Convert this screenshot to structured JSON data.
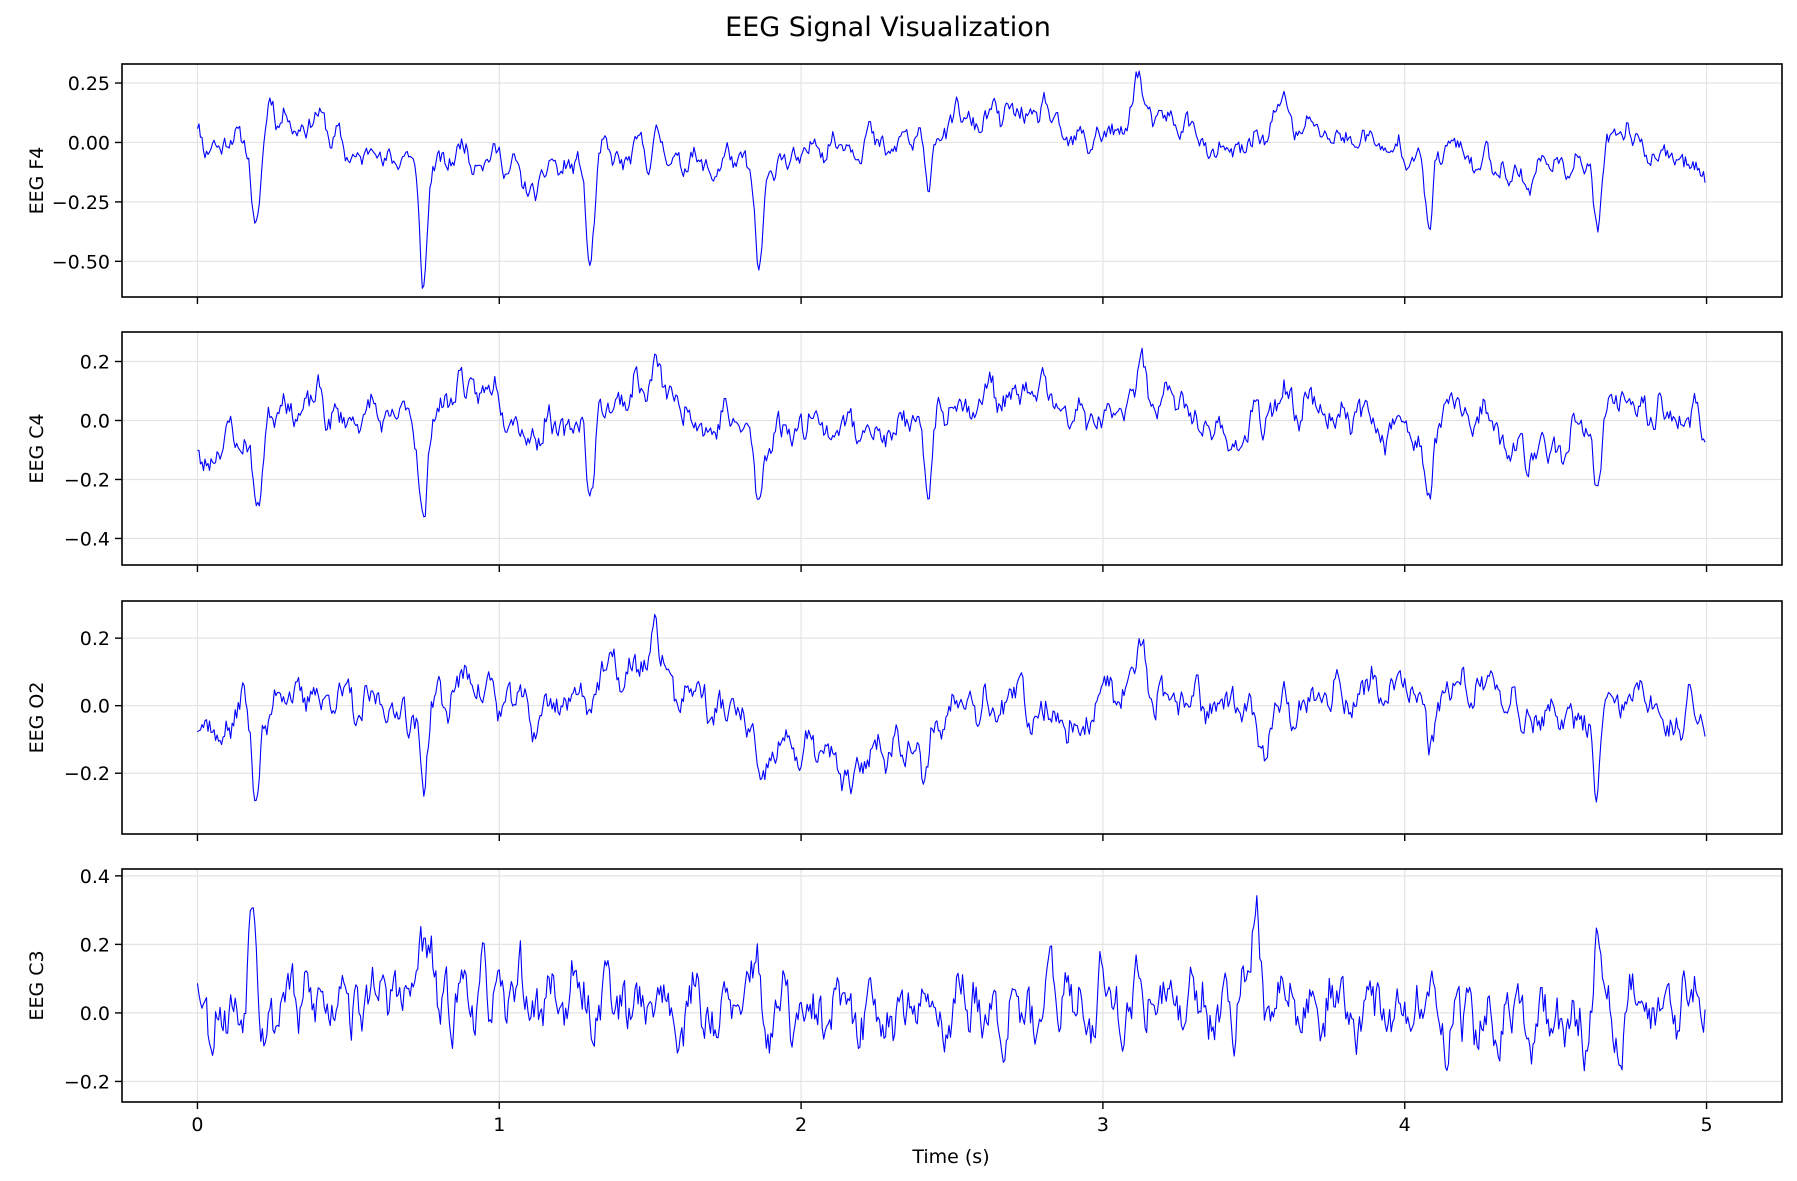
{
  "title": "EEG Signal Visualization",
  "colors": {
    "trace": "#0000ff",
    "grid": "#e3e3e3",
    "frame": "#000000"
  },
  "chart_data": {
    "type": "line",
    "title": "EEG Signal Visualization",
    "xlabel": "Time (s)",
    "xlim": [
      -0.25,
      5.25
    ],
    "xticks": [
      0,
      1,
      2,
      3,
      4,
      5
    ],
    "xtick_labels": [
      "0",
      "1",
      "2",
      "3",
      "4",
      "5"
    ],
    "grid": true,
    "sampling_rate_hz": 200,
    "duration_s": 5,
    "panels": [
      {
        "ylabel": "EEG F4",
        "ylim": [
          -0.65,
          0.33
        ],
        "yticks": [
          0.25,
          0.0,
          -0.25,
          -0.5
        ],
        "ytick_labels": [
          "0.25",
          "0.00",
          "−0.25",
          "−0.50"
        ],
        "baseline": [
          [
            0,
            -0.02
          ],
          [
            0.05,
            0.02
          ],
          [
            0.1,
            -0.02
          ],
          [
            0.15,
            0.05
          ],
          [
            0.2,
            -0.12
          ],
          [
            0.25,
            0.05
          ],
          [
            0.3,
            0.08
          ],
          [
            0.4,
            0.1
          ],
          [
            0.5,
            -0.05
          ],
          [
            0.6,
            -0.05
          ],
          [
            0.7,
            -0.07
          ],
          [
            0.8,
            -0.07
          ],
          [
            0.9,
            -0.05
          ],
          [
            1.0,
            -0.06
          ],
          [
            1.1,
            -0.2
          ],
          [
            1.2,
            -0.1
          ],
          [
            1.3,
            -0.07
          ],
          [
            1.4,
            -0.06
          ],
          [
            1.5,
            -0.05
          ],
          [
            1.6,
            -0.08
          ],
          [
            1.7,
            -0.1
          ],
          [
            1.8,
            -0.08
          ],
          [
            1.9,
            -0.12
          ],
          [
            2.0,
            -0.05
          ],
          [
            2.1,
            0.0
          ],
          [
            2.2,
            0.0
          ],
          [
            2.3,
            -0.02
          ],
          [
            2.5,
            0.08
          ],
          [
            2.6,
            0.1
          ],
          [
            2.7,
            0.12
          ],
          [
            2.8,
            0.12
          ],
          [
            2.9,
            0.0
          ],
          [
            3.0,
            0.02
          ],
          [
            3.1,
            0.1
          ],
          [
            3.2,
            0.1
          ],
          [
            3.3,
            0.05
          ],
          [
            3.4,
            -0.08
          ],
          [
            3.5,
            0.02
          ],
          [
            3.6,
            0.08
          ],
          [
            3.7,
            0.05
          ],
          [
            3.8,
            0.02
          ],
          [
            3.9,
            0.0
          ],
          [
            4.0,
            -0.05
          ],
          [
            4.1,
            -0.02
          ],
          [
            4.2,
            -0.05
          ],
          [
            4.3,
            -0.1
          ],
          [
            4.4,
            -0.15
          ],
          [
            4.5,
            -0.08
          ],
          [
            4.6,
            -0.1
          ],
          [
            4.7,
            0.05
          ],
          [
            4.8,
            -0.02
          ],
          [
            4.9,
            -0.08
          ],
          [
            5.0,
            -0.1
          ]
        ],
        "spikes": [
          [
            0.19,
            -0.28
          ],
          [
            0.24,
            0.2
          ],
          [
            0.75,
            -0.55
          ],
          [
            1.3,
            -0.45
          ],
          [
            1.53,
            0.1
          ],
          [
            1.86,
            -0.45
          ],
          [
            2.42,
            -0.22
          ],
          [
            3.12,
            0.18
          ],
          [
            3.6,
            0.12
          ],
          [
            4.08,
            -0.35
          ],
          [
            4.64,
            -0.35
          ]
        ],
        "noise": 0.045,
        "seed": 11
      },
      {
        "ylabel": "EEG C4",
        "ylim": [
          -0.49,
          0.3
        ],
        "yticks": [
          0.2,
          0.0,
          -0.2,
          -0.4
        ],
        "ytick_labels": [
          "0.2",
          "0.0",
          "−0.2",
          "−0.4"
        ],
        "baseline": [
          [
            0,
            -0.15
          ],
          [
            0.05,
            -0.1
          ],
          [
            0.1,
            -0.08
          ],
          [
            0.15,
            -0.05
          ],
          [
            0.2,
            -0.1
          ],
          [
            0.25,
            0.05
          ],
          [
            0.3,
            0.05
          ],
          [
            0.4,
            0.05
          ],
          [
            0.5,
            0.0
          ],
          [
            0.6,
            0.02
          ],
          [
            0.7,
            0.0
          ],
          [
            0.8,
            0.05
          ],
          [
            0.9,
            0.12
          ],
          [
            1.0,
            0.08
          ],
          [
            1.1,
            -0.05
          ],
          [
            1.2,
            -0.02
          ],
          [
            1.3,
            0.0
          ],
          [
            1.4,
            0.08
          ],
          [
            1.5,
            0.1
          ],
          [
            1.6,
            0.05
          ],
          [
            1.7,
            -0.02
          ],
          [
            1.8,
            0.0
          ],
          [
            1.9,
            -0.05
          ],
          [
            2.0,
            0.0
          ],
          [
            2.1,
            -0.02
          ],
          [
            2.2,
            -0.02
          ],
          [
            2.3,
            -0.05
          ],
          [
            2.5,
            0.05
          ],
          [
            2.6,
            0.08
          ],
          [
            2.7,
            0.08
          ],
          [
            2.8,
            0.1
          ],
          [
            2.9,
            0.0
          ],
          [
            3.0,
            0.0
          ],
          [
            3.1,
            0.08
          ],
          [
            3.2,
            0.08
          ],
          [
            3.3,
            0.02
          ],
          [
            3.4,
            -0.08
          ],
          [
            3.5,
            -0.02
          ],
          [
            3.6,
            0.05
          ],
          [
            3.7,
            0.05
          ],
          [
            3.8,
            0.02
          ],
          [
            3.9,
            0.0
          ],
          [
            4.0,
            -0.05
          ],
          [
            4.1,
            0.0
          ],
          [
            4.2,
            0.05
          ],
          [
            4.3,
            -0.05
          ],
          [
            4.4,
            -0.12
          ],
          [
            4.5,
            -0.1
          ],
          [
            4.6,
            -0.05
          ],
          [
            4.7,
            0.08
          ],
          [
            4.8,
            0.05
          ],
          [
            4.9,
            0.0
          ],
          [
            5.0,
            0.02
          ]
        ],
        "spikes": [
          [
            0.2,
            -0.22
          ],
          [
            0.75,
            -0.38
          ],
          [
            1.3,
            -0.25
          ],
          [
            1.52,
            0.14
          ],
          [
            1.86,
            -0.3
          ],
          [
            2.42,
            -0.25
          ],
          [
            3.13,
            0.13
          ],
          [
            3.6,
            0.08
          ],
          [
            4.08,
            -0.32
          ],
          [
            4.64,
            -0.22
          ]
        ],
        "noise": 0.045,
        "seed": 23
      },
      {
        "ylabel": "EEG O2",
        "ylim": [
          -0.38,
          0.31
        ],
        "yticks": [
          0.2,
          0.0,
          -0.2
        ],
        "ytick_labels": [
          "0.2",
          "0.0",
          "−0.2"
        ],
        "baseline": [
          [
            0,
            -0.07
          ],
          [
            0.05,
            -0.05
          ],
          [
            0.1,
            -0.1
          ],
          [
            0.15,
            0.05
          ],
          [
            0.2,
            -0.15
          ],
          [
            0.25,
            0.05
          ],
          [
            0.3,
            0.02
          ],
          [
            0.4,
            0.04
          ],
          [
            0.5,
            0.0
          ],
          [
            0.6,
            0.0
          ],
          [
            0.7,
            -0.02
          ],
          [
            0.8,
            0.02
          ],
          [
            0.9,
            0.08
          ],
          [
            1.0,
            0.02
          ],
          [
            1.1,
            -0.02
          ],
          [
            1.2,
            0.0
          ],
          [
            1.3,
            0.05
          ],
          [
            1.4,
            0.1
          ],
          [
            1.5,
            0.12
          ],
          [
            1.6,
            0.05
          ],
          [
            1.7,
            0.0
          ],
          [
            1.8,
            -0.03
          ],
          [
            1.9,
            -0.15
          ],
          [
            2.0,
            -0.12
          ],
          [
            2.1,
            -0.15
          ],
          [
            2.2,
            -0.18
          ],
          [
            2.3,
            -0.1
          ],
          [
            2.4,
            -0.12
          ],
          [
            2.5,
            0.02
          ],
          [
            2.6,
            0.02
          ],
          [
            2.7,
            0.0
          ],
          [
            2.8,
            0.0
          ],
          [
            2.9,
            -0.08
          ],
          [
            3.0,
            0.02
          ],
          [
            3.1,
            0.05
          ],
          [
            3.2,
            0.0
          ],
          [
            3.3,
            0.02
          ],
          [
            3.4,
            0.0
          ],
          [
            3.5,
            -0.05
          ],
          [
            3.6,
            0.0
          ],
          [
            3.7,
            0.02
          ],
          [
            3.8,
            0.04
          ],
          [
            3.9,
            0.04
          ],
          [
            4.0,
            0.05
          ],
          [
            4.1,
            0.02
          ],
          [
            4.2,
            0.06
          ],
          [
            4.3,
            0.05
          ],
          [
            4.4,
            -0.02
          ],
          [
            4.5,
            -0.05
          ],
          [
            4.6,
            -0.05
          ],
          [
            4.7,
            0.02
          ],
          [
            4.8,
            0.0
          ],
          [
            4.9,
            -0.05
          ],
          [
            5.0,
            -0.02
          ]
        ],
        "spikes": [
          [
            0.19,
            -0.15
          ],
          [
            0.75,
            -0.25
          ],
          [
            1.52,
            0.12
          ],
          [
            1.86,
            -0.15
          ],
          [
            2.14,
            -0.12
          ],
          [
            2.41,
            -0.15
          ],
          [
            3.13,
            0.14
          ],
          [
            3.53,
            -0.12
          ],
          [
            4.08,
            -0.18
          ],
          [
            4.64,
            -0.25
          ]
        ],
        "noise": 0.045,
        "seed": 37
      },
      {
        "ylabel": "EEG C3",
        "ylim": [
          -0.26,
          0.42
        ],
        "yticks": [
          0.4,
          0.2,
          0.0,
          -0.2
        ],
        "ytick_labels": [
          "0.4",
          "0.2",
          "0.0",
          "−0.2"
        ],
        "baseline": [
          [
            0,
            0.0
          ],
          [
            0.5,
            0.05
          ],
          [
            1.0,
            0.05
          ],
          [
            1.5,
            0.03
          ],
          [
            2.0,
            -0.02
          ],
          [
            2.5,
            0.02
          ],
          [
            3.0,
            0.04
          ],
          [
            3.5,
            0.03
          ],
          [
            4.0,
            0.0
          ],
          [
            4.5,
            -0.05
          ],
          [
            5.0,
            0.05
          ]
        ],
        "spikes": [
          [
            0.18,
            0.28
          ],
          [
            0.74,
            0.2
          ],
          [
            1.85,
            0.18
          ],
          [
            3.51,
            0.28
          ],
          [
            4.64,
            0.18
          ]
        ],
        "noise": 0.075,
        "seed": 53
      }
    ]
  }
}
